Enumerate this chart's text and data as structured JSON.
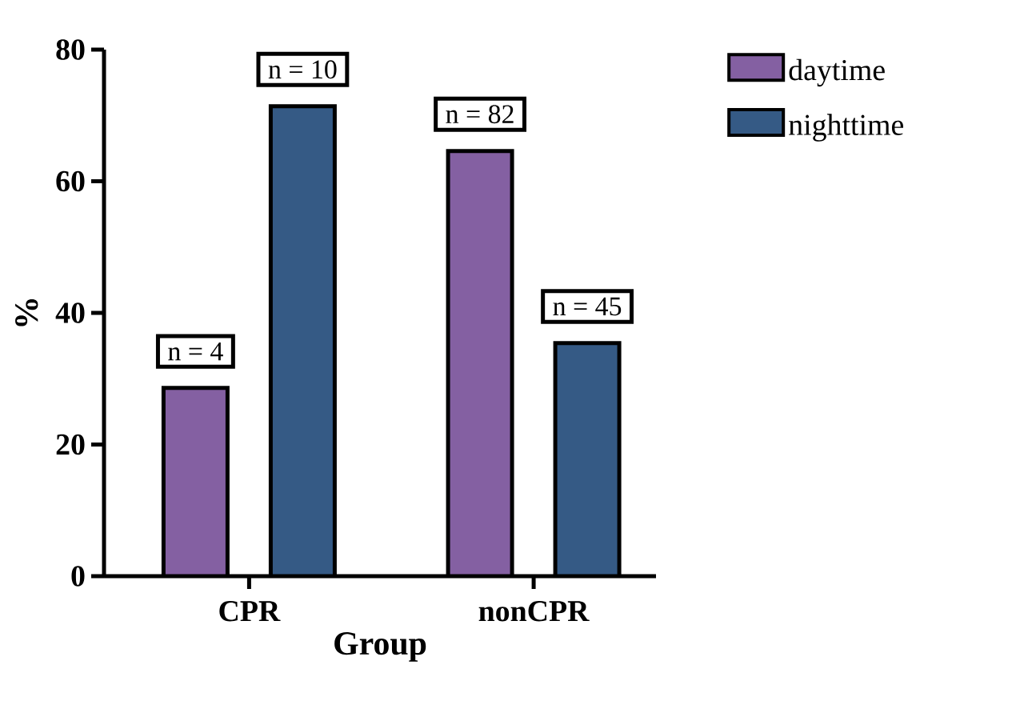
{
  "chart_data": {
    "type": "bar",
    "xlabel": "Group",
    "ylabel": "%",
    "categories": [
      "CPR",
      "nonCPR"
    ],
    "series": [
      {
        "name": "daytime",
        "color": "#8460a2",
        "values": [
          28.6,
          64.6
        ]
      },
      {
        "name": "nighttime",
        "color": "#355a85",
        "values": [
          71.4,
          35.4
        ]
      }
    ],
    "ylim": [
      0,
      80
    ],
    "yticks": [
      0,
      20,
      40,
      60,
      80
    ],
    "grid": false,
    "legend": "top right",
    "annotations": [
      "n = 4",
      "n = 10",
      "n = 82",
      "n = 45"
    ]
  }
}
